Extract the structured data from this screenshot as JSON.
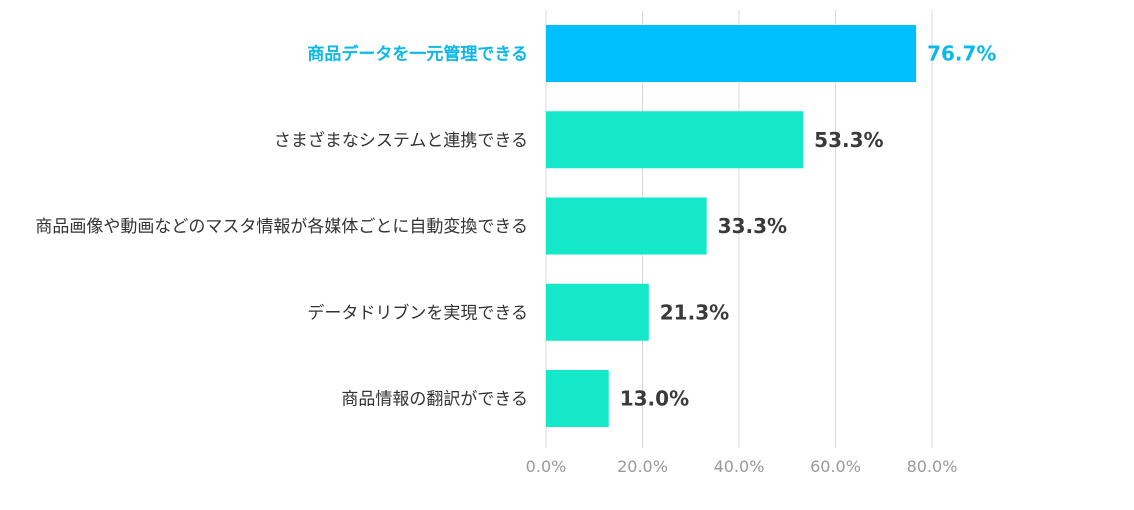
{
  "chart_data": {
    "type": "bar",
    "orientation": "horizontal",
    "categories": [
      "商品データを一元管理できる",
      "さまざまなシステムと連携できる",
      "商品画像や動画などのマスタ情報が各媒体ごとに自動変換できる",
      "データドリブンを実現できる",
      "商品情報の翻訳ができる"
    ],
    "values": [
      76.7,
      53.3,
      33.3,
      21.3,
      13.0
    ],
    "value_labels": [
      "76.7%",
      "53.3%",
      "33.3%",
      "21.3%",
      "13.0%"
    ],
    "highlight_index": 0,
    "xlim": [
      0,
      80
    ],
    "xticks": [
      0,
      20,
      40,
      60,
      80
    ],
    "xtick_labels": [
      "0.0%",
      "20.0%",
      "40.0%",
      "60.0%",
      "80.0%"
    ],
    "title": "",
    "xlabel": "",
    "ylabel": "",
    "grid": "vertical",
    "colors": {
      "highlight_bar": "#00bfff",
      "bar": "#14e8c8",
      "highlight_text": "#0bb8ea",
      "label_text": "#333333",
      "value_text": "#3a3a3a",
      "tick_text": "#9a9a9a",
      "gridline": "#d9d9d9"
    }
  }
}
